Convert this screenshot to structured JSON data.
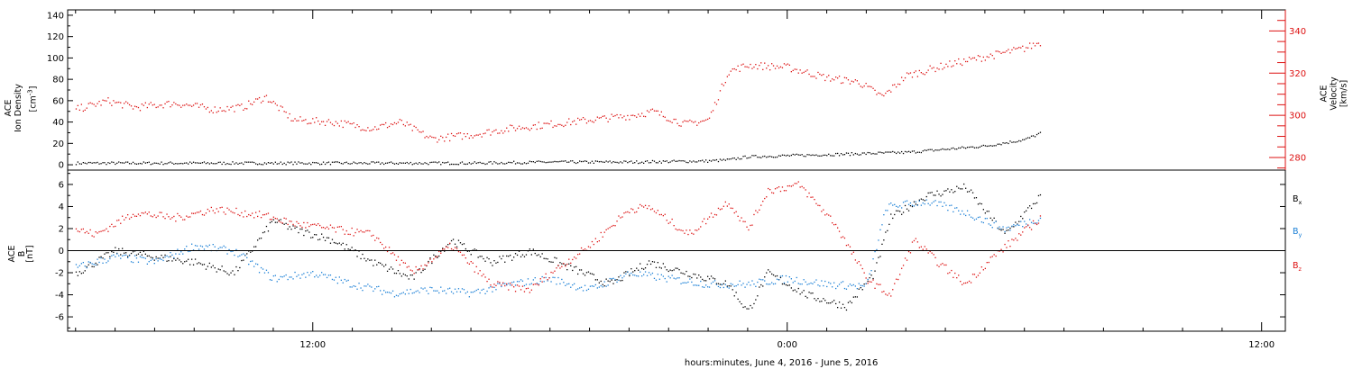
{
  "chart_data": [
    {
      "type": "scatter",
      "panel": "top",
      "x_unit": "hours relative to 00:00 June 5, 2016",
      "xlim": [
        -18.2,
        12.6
      ],
      "ylabel_lines": [
        "ACE",
        "Ion Density"
      ],
      "ylabel_unit_main": "[cm",
      "ylabel_unit_exp": "-3",
      "ylabel_unit_end": "]",
      "ylim": [
        -5,
        145
      ],
      "yticks": [
        "0",
        "20",
        "40",
        "60",
        "80",
        "100",
        "120",
        "140"
      ],
      "ytick_values": [
        0,
        20,
        40,
        60,
        80,
        100,
        120,
        140
      ],
      "y2label_lines": [
        "ACE",
        "Velocity",
        "[km/s]"
      ],
      "y2lim": [
        274,
        350
      ],
      "y2ticks": [
        "280",
        "300",
        "320",
        "340"
      ],
      "y2tick_values": [
        280,
        300,
        320,
        340
      ],
      "series": [
        {
          "color": "#000000",
          "axis": "left",
          "x": [
            -18,
            -16,
            -14,
            -12,
            -10,
            -8,
            -6,
            -4,
            -2,
            -1.5,
            -1,
            0,
            1,
            2,
            3,
            4,
            5,
            6,
            6.4
          ],
          "y": [
            2,
            2,
            2,
            2,
            2,
            2,
            3,
            3,
            4,
            5,
            8,
            9,
            10,
            11,
            12,
            15,
            18,
            24,
            30
          ]
        },
        {
          "color": "#dd1111",
          "axis": "right",
          "x": [
            -18,
            -17.2,
            -16.5,
            -15.5,
            -14.5,
            -13.8,
            -13.2,
            -12.5,
            -11.5,
            -10.5,
            -9.8,
            -9,
            -8,
            -7,
            -6,
            -5,
            -4,
            -3.4,
            -2.6,
            -2,
            -1.5,
            -1,
            0,
            1,
            1.8,
            2.4,
            3,
            4,
            5,
            6,
            6.4
          ],
          "y": [
            303,
            307,
            304,
            306,
            303,
            304,
            309,
            298,
            297,
            294,
            297,
            289,
            291,
            294,
            296,
            298,
            300,
            302,
            296,
            298,
            321,
            324,
            323,
            318,
            316,
            309,
            319,
            324,
            328,
            332,
            335
          ]
        }
      ]
    },
    {
      "type": "scatter",
      "panel": "bottom",
      "x_unit": "hours relative to 00:00 June 5, 2016",
      "xlim": [
        -18.2,
        12.6
      ],
      "ylabel_lines": [
        "ACE",
        "B"
      ],
      "ylabel_unit": "[nT]",
      "ylim": [
        -7.3,
        7.3
      ],
      "yticks": [
        "-6",
        "-4",
        "-2",
        "0",
        "2",
        "4",
        "6"
      ],
      "ytick_values": [
        -6,
        -4,
        -2,
        0,
        2,
        4,
        6
      ],
      "legend_position": "right",
      "series": [
        {
          "name_main": "B",
          "name_sub": "x",
          "color": "#000000",
          "x": [
            -18,
            -17,
            -16,
            -15,
            -14,
            -13,
            -12.5,
            -11.5,
            -10.5,
            -9.5,
            -8.5,
            -7.5,
            -6.5,
            -5.5,
            -4.5,
            -3.5,
            -2.5,
            -1.5,
            -1,
            -0.5,
            0.5,
            1.5,
            2.2,
            2.6,
            3.5,
            4.5,
            5.5,
            6.4
          ],
          "y": [
            -2,
            0,
            -0.5,
            -1,
            -2,
            2.8,
            2,
            1,
            -1,
            -2.5,
            1,
            -1,
            0,
            -1.5,
            -3,
            -1,
            -2,
            -3,
            -5.5,
            -2,
            -4,
            -5,
            -2,
            3,
            5,
            5.8,
            1.5,
            5
          ]
        },
        {
          "name_main": "B",
          "name_sub": "y",
          "color": "#1a7fd6",
          "x": [
            -18,
            -17,
            -16,
            -15,
            -14,
            -13,
            -12,
            -11,
            -10,
            -9,
            -8,
            -7,
            -6,
            -5,
            -4,
            -3,
            -2,
            -1,
            0,
            1,
            2,
            2.5,
            3.5,
            4.5,
            5.5,
            6.4
          ],
          "y": [
            -1.5,
            -0.5,
            -1,
            0.5,
            0,
            -2.5,
            -2,
            -3,
            -3.8,
            -3.5,
            -3.8,
            -3,
            -2.5,
            -3.5,
            -2,
            -2.5,
            -3,
            -3,
            -2.5,
            -3,
            -3.2,
            4,
            4.5,
            3.5,
            2,
            3
          ]
        },
        {
          "name_main": "B",
          "name_sub": "z",
          "color": "#dd1111",
          "x": [
            -18,
            -17.5,
            -16.5,
            -15.5,
            -14.5,
            -13.2,
            -12.5,
            -11.5,
            -10.5,
            -9.5,
            -8.5,
            -7.5,
            -6.5,
            -6,
            -5,
            -4,
            -3.5,
            -2.5,
            -1.5,
            -1,
            -0.5,
            0.3,
            1.2,
            2,
            2.6,
            3.2,
            3.8,
            4.5,
            5.2,
            6.4
          ],
          "y": [
            2,
            1.5,
            3.5,
            3,
            3.8,
            3.2,
            2.5,
            2,
            1.5,
            -2,
            0.5,
            -3,
            -3.5,
            -2,
            0.5,
            3.8,
            4,
            1.5,
            4.5,
            2,
            5.5,
            6,
            2.5,
            -2.5,
            -4,
            1,
            -1,
            -3,
            -0.5,
            3
          ]
        }
      ]
    }
  ],
  "x_axis": {
    "tick_labels": [
      "12:00",
      "0:00",
      "12:00"
    ],
    "tick_values": [
      -12,
      0,
      12
    ],
    "label": "hours:minutes, June  4, 2016 - June  5, 2016"
  }
}
